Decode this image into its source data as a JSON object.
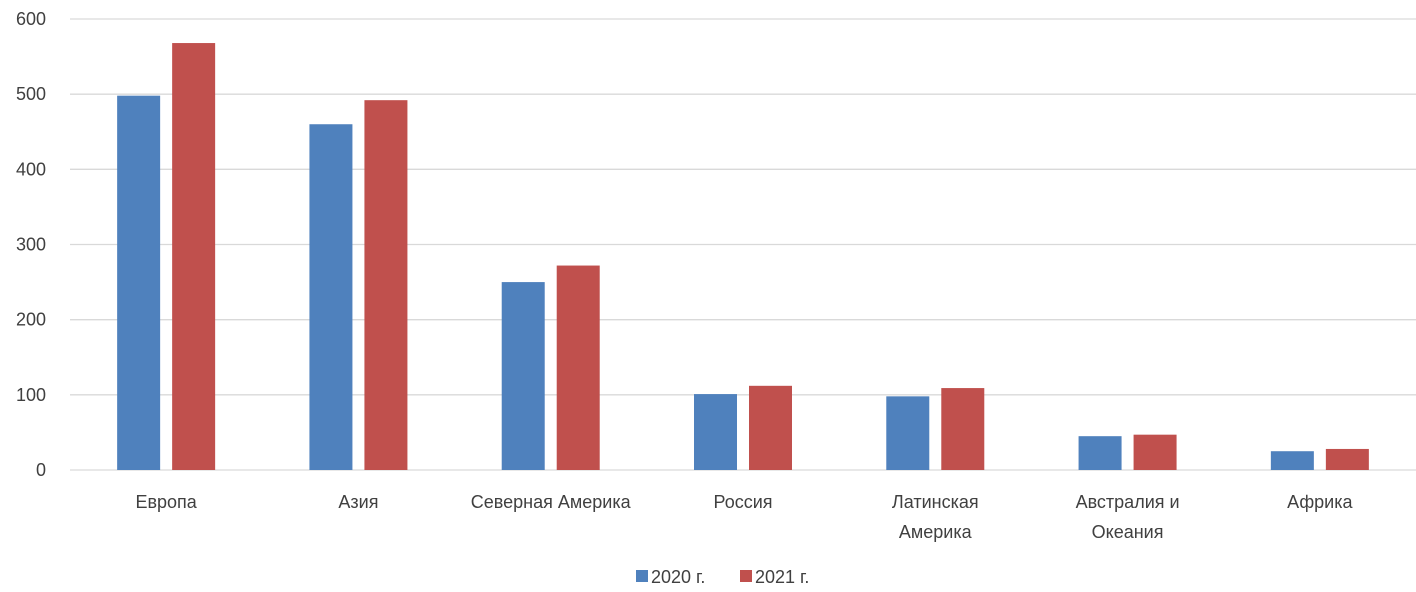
{
  "chart_data": {
    "type": "bar",
    "categories": [
      "Европа",
      "Азия",
      "Северная Америка",
      "Россия",
      "Латинская Америка",
      "Австралия и Океания",
      "Африка"
    ],
    "series": [
      {
        "name": "2020 г.",
        "color": "#4F81BD",
        "values": [
          498,
          460,
          250,
          101,
          98,
          45,
          25
        ]
      },
      {
        "name": "2021 г.",
        "color": "#C0504D",
        "values": [
          568,
          492,
          272,
          112,
          109,
          47,
          28
        ]
      }
    ],
    "y_ticks": [
      "0",
      "100",
      "200",
      "300",
      "400",
      "500",
      "600"
    ],
    "ylim": [
      0,
      600
    ],
    "grid": true,
    "legend_position": "bottom",
    "title": "",
    "xlabel": "",
    "ylabel": ""
  }
}
